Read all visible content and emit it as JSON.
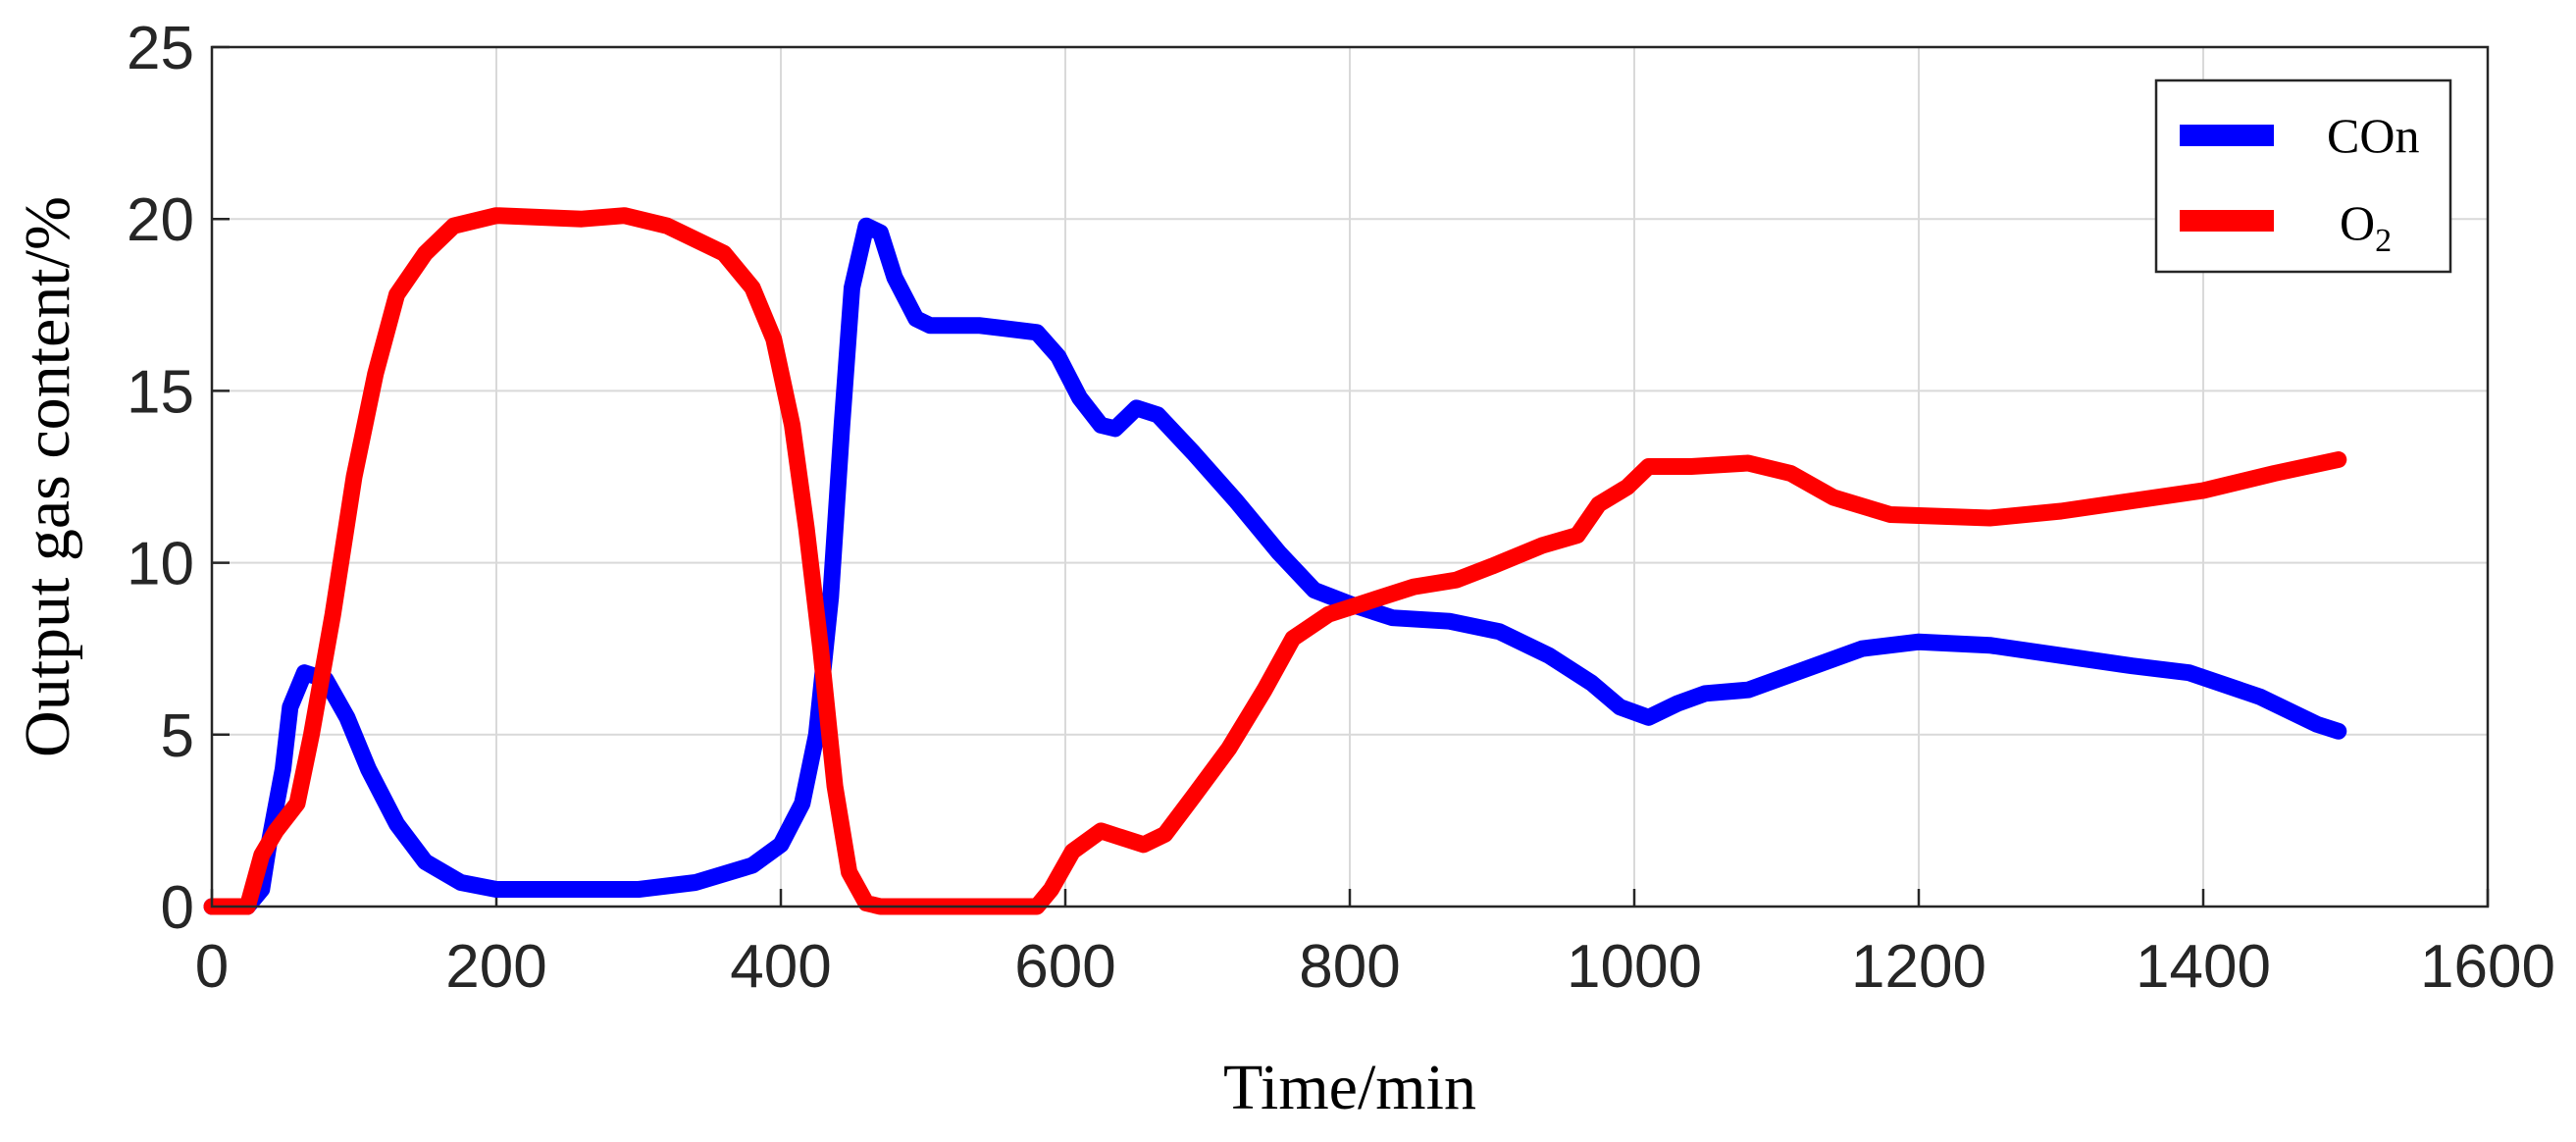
{
  "chart_data": {
    "type": "line",
    "title": "",
    "xlabel": "Time/min",
    "ylabel": "Output gas content/%",
    "xlim": [
      0,
      1600
    ],
    "ylim": [
      0,
      25
    ],
    "xticks": [
      0,
      200,
      400,
      600,
      800,
      1000,
      1200,
      1400,
      1600
    ],
    "yticks": [
      0,
      5,
      10,
      15,
      20,
      25
    ],
    "grid": true,
    "legend_position": "top-right",
    "series": [
      {
        "name": "COn",
        "legend_main": "COn",
        "legend_sub": "",
        "color": "#0000ff",
        "points": [
          [
            0,
            0
          ],
          [
            25,
            0
          ],
          [
            35,
            0.5
          ],
          [
            40,
            1.8
          ],
          [
            50,
            4.0
          ],
          [
            55,
            5.8
          ],
          [
            65,
            6.8
          ],
          [
            80,
            6.6
          ],
          [
            95,
            5.5
          ],
          [
            110,
            4.0
          ],
          [
            130,
            2.4
          ],
          [
            150,
            1.3
          ],
          [
            175,
            0.7
          ],
          [
            200,
            0.5
          ],
          [
            250,
            0.5
          ],
          [
            300,
            0.5
          ],
          [
            340,
            0.7
          ],
          [
            380,
            1.2
          ],
          [
            400,
            1.8
          ],
          [
            415,
            3.0
          ],
          [
            425,
            5.0
          ],
          [
            435,
            9.0
          ],
          [
            443,
            14.0
          ],
          [
            450,
            18.0
          ],
          [
            460,
            19.8
          ],
          [
            470,
            19.6
          ],
          [
            480,
            18.3
          ],
          [
            495,
            17.1
          ],
          [
            505,
            16.9
          ],
          [
            540,
            16.9
          ],
          [
            580,
            16.7
          ],
          [
            595,
            16.0
          ],
          [
            610,
            14.8
          ],
          [
            625,
            14.0
          ],
          [
            635,
            13.9
          ],
          [
            650,
            14.5
          ],
          [
            665,
            14.3
          ],
          [
            690,
            13.2
          ],
          [
            720,
            11.8
          ],
          [
            750,
            10.3
          ],
          [
            775,
            9.2
          ],
          [
            800,
            8.8
          ],
          [
            830,
            8.4
          ],
          [
            870,
            8.3
          ],
          [
            905,
            8.0
          ],
          [
            940,
            7.3
          ],
          [
            970,
            6.5
          ],
          [
            990,
            5.8
          ],
          [
            1010,
            5.5
          ],
          [
            1030,
            5.9
          ],
          [
            1050,
            6.2
          ],
          [
            1080,
            6.3
          ],
          [
            1120,
            6.9
          ],
          [
            1160,
            7.5
          ],
          [
            1200,
            7.7
          ],
          [
            1250,
            7.6
          ],
          [
            1300,
            7.3
          ],
          [
            1350,
            7.0
          ],
          [
            1390,
            6.8
          ],
          [
            1440,
            6.1
          ],
          [
            1480,
            5.3
          ],
          [
            1495,
            5.1
          ]
        ]
      },
      {
        "name": "O2",
        "legend_main": "O",
        "legend_sub": "2",
        "color": "#ff0000",
        "points": [
          [
            0,
            0
          ],
          [
            25,
            0
          ],
          [
            35,
            1.5
          ],
          [
            45,
            2.2
          ],
          [
            60,
            3.0
          ],
          [
            70,
            5.0
          ],
          [
            85,
            8.5
          ],
          [
            100,
            12.5
          ],
          [
            115,
            15.5
          ],
          [
            130,
            17.8
          ],
          [
            150,
            19.0
          ],
          [
            170,
            19.8
          ],
          [
            200,
            20.1
          ],
          [
            260,
            20.0
          ],
          [
            290,
            20.1
          ],
          [
            320,
            19.8
          ],
          [
            360,
            19.0
          ],
          [
            380,
            18.0
          ],
          [
            395,
            16.5
          ],
          [
            408,
            14.0
          ],
          [
            418,
            11.0
          ],
          [
            428,
            7.5
          ],
          [
            438,
            3.5
          ],
          [
            448,
            1.0
          ],
          [
            460,
            0.1
          ],
          [
            470,
            0
          ],
          [
            580,
            0
          ],
          [
            590,
            0.5
          ],
          [
            605,
            1.6
          ],
          [
            625,
            2.2
          ],
          [
            640,
            2.0
          ],
          [
            655,
            1.8
          ],
          [
            670,
            2.1
          ],
          [
            690,
            3.2
          ],
          [
            715,
            4.6
          ],
          [
            740,
            6.3
          ],
          [
            760,
            7.8
          ],
          [
            785,
            8.5
          ],
          [
            815,
            8.9
          ],
          [
            845,
            9.3
          ],
          [
            875,
            9.5
          ],
          [
            900,
            9.9
          ],
          [
            935,
            10.5
          ],
          [
            960,
            10.8
          ],
          [
            975,
            11.7
          ],
          [
            995,
            12.2
          ],
          [
            1010,
            12.8
          ],
          [
            1040,
            12.8
          ],
          [
            1080,
            12.9
          ],
          [
            1110,
            12.6
          ],
          [
            1140,
            11.9
          ],
          [
            1180,
            11.4
          ],
          [
            1250,
            11.3
          ],
          [
            1300,
            11.5
          ],
          [
            1350,
            11.8
          ],
          [
            1400,
            12.1
          ],
          [
            1450,
            12.6
          ],
          [
            1495,
            13.0
          ]
        ]
      }
    ]
  }
}
